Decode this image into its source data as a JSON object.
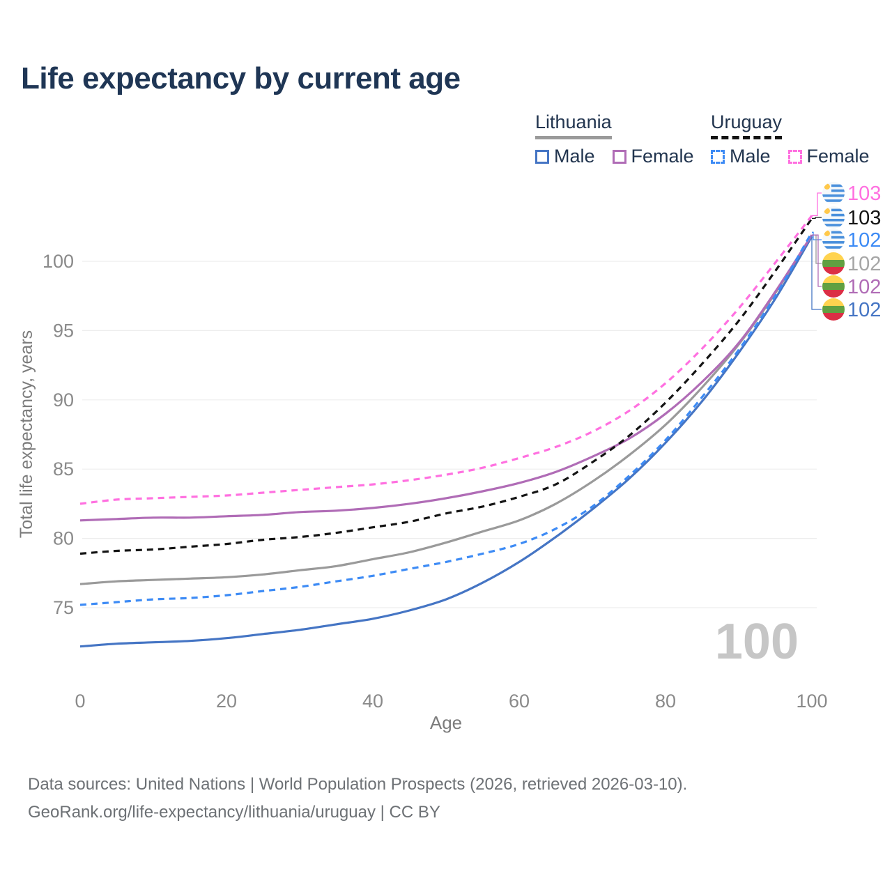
{
  "title": "Life expectancy by current age",
  "legend": {
    "lithuania": {
      "name": "Lithuania",
      "male": "Male",
      "female": "Female",
      "line_style": "solid",
      "underline_color": "#9a9a9a"
    },
    "uruguay": {
      "name": "Uruguay",
      "male": "Male",
      "female": "Female",
      "line_style": "dashed",
      "underline_color": "#141414"
    }
  },
  "age_indicator": "100",
  "footer": {
    "line1": "Data sources: United Nations | World Population Prospects (2026, retrieved 2026-03-10).",
    "line2": "GeoRank.org/life-expectancy/lithuania/uruguay | CC BY"
  },
  "colors": {
    "title_text": "#1f3655",
    "legend_text": "#22354f",
    "tick_text": "#8a8a8a",
    "axis_title_text": "#7c7c7c",
    "gridline": "#ededed",
    "age_indicator": "#c6c6c6",
    "footer_text": "#6d7175"
  },
  "chart_data": {
    "type": "line",
    "title": "Life expectancy by current age",
    "xlabel": "Age",
    "ylabel": "Total life expectancy, years",
    "x_ticks": [
      0,
      20,
      40,
      60,
      80,
      100
    ],
    "y_ticks": [
      75,
      80,
      85,
      90,
      95,
      100
    ],
    "xlim": [
      0,
      100
    ],
    "ylim": [
      71.5,
      104.5
    ],
    "grid": true,
    "legend_position": "top-right",
    "x": [
      0,
      5,
      10,
      15,
      20,
      25,
      30,
      35,
      40,
      45,
      50,
      55,
      60,
      65,
      70,
      75,
      80,
      85,
      90,
      95,
      100
    ],
    "series": [
      {
        "name": "Lithuania Total",
        "country": "Lithuania",
        "sex": "Total",
        "color": "#9a9a9a",
        "dash": "solid",
        "flag": "lithuania",
        "end_label": "102",
        "end_label_color": "#a6a6a6",
        "label_row": 3,
        "values": [
          76.7,
          76.9,
          77.0,
          77.1,
          77.2,
          77.4,
          77.7,
          78.0,
          78.5,
          79.0,
          79.7,
          80.5,
          81.3,
          82.5,
          84.1,
          86.0,
          88.2,
          90.9,
          94.0,
          97.7,
          101.9
        ]
      },
      {
        "name": "Lithuania Male",
        "country": "Lithuania",
        "sex": "Male",
        "color": "#4575c4",
        "dash": "solid",
        "flag": "lithuania",
        "end_label": "102",
        "end_label_color": "#4575c4",
        "label_row": 5,
        "values": [
          72.2,
          72.4,
          72.5,
          72.6,
          72.8,
          73.1,
          73.4,
          73.8,
          74.2,
          74.8,
          75.6,
          76.8,
          78.3,
          80.1,
          82.1,
          84.3,
          86.9,
          89.9,
          93.4,
          97.3,
          101.8
        ]
      },
      {
        "name": "Lithuania Female",
        "country": "Lithuania",
        "sex": "Female",
        "color": "#b06cb6",
        "dash": "solid",
        "flag": "lithuania",
        "end_label": "102",
        "end_label_color": "#b06cb6",
        "label_row": 4,
        "values": [
          81.3,
          81.4,
          81.5,
          81.5,
          81.6,
          81.7,
          81.9,
          82.0,
          82.2,
          82.5,
          82.9,
          83.4,
          84.0,
          84.8,
          85.9,
          87.2,
          89.0,
          91.3,
          94.1,
          97.8,
          101.9
        ]
      },
      {
        "name": "Uruguay Total",
        "country": "Uruguay",
        "sex": "Total",
        "color": "#141414",
        "dash": "dashed",
        "flag": "uruguay",
        "end_label": "103",
        "end_label_color": "#141414",
        "label_row": 1,
        "values": [
          78.9,
          79.1,
          79.2,
          79.4,
          79.6,
          79.9,
          80.1,
          80.4,
          80.8,
          81.2,
          81.8,
          82.3,
          83.0,
          83.9,
          85.5,
          87.4,
          89.8,
          92.6,
          95.7,
          99.3,
          103.1
        ]
      },
      {
        "name": "Uruguay Male",
        "country": "Uruguay",
        "sex": "Male",
        "color": "#3d8bf5",
        "dash": "dashed",
        "flag": "uruguay",
        "end_label": "102",
        "end_label_color": "#3d8bf5",
        "label_row": 2,
        "values": [
          75.2,
          75.4,
          75.6,
          75.7,
          75.9,
          76.2,
          76.5,
          76.9,
          77.3,
          77.8,
          78.3,
          78.9,
          79.6,
          80.7,
          82.3,
          84.5,
          87.1,
          90.2,
          93.6,
          97.5,
          102.1
        ]
      },
      {
        "name": "Uruguay Female",
        "country": "Uruguay",
        "sex": "Female",
        "color": "#ff70e0",
        "dash": "dashed",
        "flag": "uruguay",
        "end_label": "103",
        "end_label_color": "#ff70e0",
        "label_row": 0,
        "values": [
          82.5,
          82.8,
          82.9,
          83.0,
          83.1,
          83.3,
          83.5,
          83.7,
          83.9,
          84.2,
          84.6,
          85.1,
          85.8,
          86.6,
          87.7,
          89.2,
          91.2,
          93.7,
          96.6,
          99.9,
          103.3
        ]
      }
    ]
  }
}
